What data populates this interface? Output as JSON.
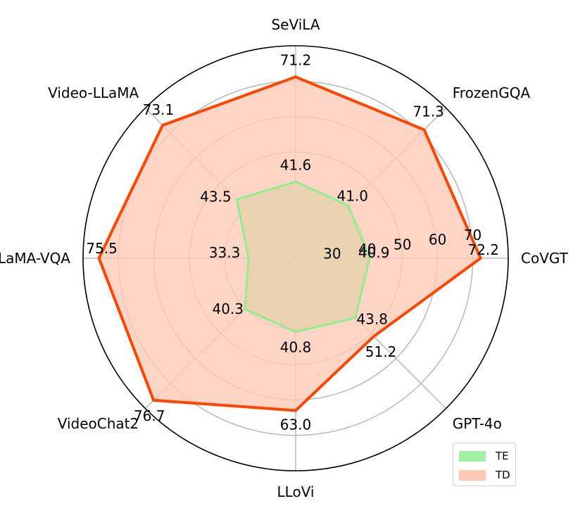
{
  "chart_data": {
    "type": "radar",
    "categories": [
      "SeViLA",
      "FrozenGQA",
      "CoVGT",
      "GPT-4o",
      "LLoVi",
      "VideoChat2",
      "LLaMA-VQA",
      "Video-LLaMA"
    ],
    "radial_ticks": [
      30,
      40,
      50,
      60,
      70
    ],
    "rlim": [
      20,
      80
    ],
    "grid": true,
    "legend_position": "lower-right",
    "series": [
      {
        "name": "TE",
        "values": [
          41.6,
          41.0,
          40.9,
          43.8,
          40.8,
          40.3,
          33.3,
          43.5
        ],
        "labels": [
          "41.6",
          "41.0",
          "40.9",
          "43.8",
          "40.8",
          "40.3",
          "33.3",
          "43.5"
        ],
        "color": "#90ee90"
      },
      {
        "name": "TD",
        "values": [
          71.2,
          71.3,
          72.2,
          51.2,
          63.0,
          76.7,
          75.5,
          73.1
        ],
        "labels": [
          "71.2",
          "71.3",
          "72.2",
          "51.2",
          "63.0",
          "76.7",
          "75.5",
          "73.1"
        ],
        "color": "#ff4500"
      }
    ]
  },
  "legend": {
    "te_label": "TE",
    "td_label": "TD"
  },
  "colors": {
    "te_fill": "#90ee90",
    "te_line": "#90ee90",
    "td_fill": "#ffc9b6",
    "td_line": "#ff4500",
    "grid": "#b0b0b0"
  }
}
